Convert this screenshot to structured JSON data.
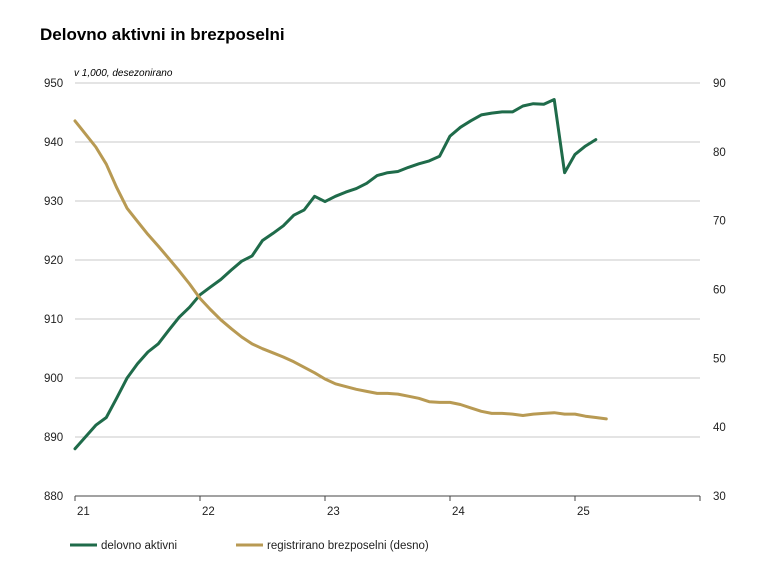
{
  "chart_data": {
    "type": "line",
    "title": "Delovno aktivni in brezposelni",
    "subtitle": "v 1,000, desezonirano",
    "x_tick_labels": [
      "21",
      "22",
      "23",
      "24",
      "25"
    ],
    "xlim": [
      21,
      26
    ],
    "ylim_left": [
      880,
      950
    ],
    "yticks_left": [
      880,
      890,
      900,
      910,
      920,
      930,
      940,
      950
    ],
    "ylim_right": [
      30,
      90
    ],
    "yticks_right": [
      30,
      40,
      50,
      60,
      70,
      80,
      90
    ],
    "grid": true,
    "legend_position": "bottom",
    "series": [
      {
        "name": "delovno aktivni",
        "axis": "left",
        "color": "#1f6b4a",
        "x": [
          21.0,
          21.0833,
          21.1667,
          21.25,
          21.3333,
          21.4167,
          21.5,
          21.5833,
          21.6667,
          21.75,
          21.8333,
          21.9167,
          22.0,
          22.0833,
          22.1667,
          22.25,
          22.3333,
          22.4167,
          22.5,
          22.5833,
          22.6667,
          22.75,
          22.8333,
          22.9167,
          23.0,
          23.0833,
          23.1667,
          23.25,
          23.3333,
          23.4167,
          23.5,
          23.5833,
          23.6667,
          23.75,
          23.8333,
          23.9167,
          24.0,
          24.0833,
          24.1667,
          24.25,
          24.3333,
          24.4167,
          24.5,
          24.5833,
          24.6667,
          24.75,
          24.8333,
          24.9167,
          25.0,
          25.0833,
          25.1667
        ],
        "values": [
          888.0,
          890.0,
          892.0,
          893.3,
          896.6,
          900.0,
          902.4,
          904.4,
          905.8,
          908.1,
          910.3,
          912.0,
          914.1,
          915.4,
          916.7,
          918.3,
          919.8,
          920.7,
          923.3,
          924.5,
          925.8,
          927.6,
          928.5,
          930.8,
          929.9,
          930.8,
          931.5,
          932.1,
          933.0,
          934.3,
          934.8,
          935.0,
          935.7,
          936.3,
          936.8,
          937.6,
          941.0,
          942.5,
          943.6,
          944.6,
          944.9,
          945.1,
          945.1,
          946.1,
          946.5,
          946.4,
          947.2,
          934.8,
          937.9,
          939.3,
          940.4
        ]
      },
      {
        "name": "registrirano brezposelni (desno)",
        "axis": "right",
        "color": "#b89a53",
        "x": [
          21.0,
          21.0833,
          21.1667,
          21.25,
          21.3333,
          21.4167,
          21.5,
          21.5833,
          21.6667,
          21.75,
          21.8333,
          21.9167,
          22.0,
          22.0833,
          22.1667,
          22.25,
          22.3333,
          22.4167,
          22.5,
          22.5833,
          22.6667,
          22.75,
          22.8333,
          22.9167,
          23.0,
          23.0833,
          23.1667,
          23.25,
          23.3333,
          23.4167,
          23.5,
          23.5833,
          23.6667,
          23.75,
          23.8333,
          23.9167,
          24.0,
          24.0833,
          24.1667,
          24.25,
          24.3333,
          24.4167,
          24.5,
          24.5833,
          24.6667,
          24.75,
          24.8333,
          24.9167,
          25.0,
          25.0833,
          25.1667,
          25.25
        ],
        "values": [
          84.5,
          82.6,
          80.7,
          78.2,
          74.8,
          71.8,
          69.9,
          68.0,
          66.3,
          64.5,
          62.7,
          60.8,
          58.7,
          57.1,
          55.6,
          54.3,
          53.1,
          52.1,
          51.4,
          50.8,
          50.2,
          49.5,
          48.7,
          47.9,
          47.0,
          46.3,
          45.9,
          45.5,
          45.2,
          44.9,
          44.9,
          44.8,
          44.5,
          44.2,
          43.7,
          43.6,
          43.6,
          43.3,
          42.8,
          42.3,
          42.0,
          42.0,
          41.9,
          41.7,
          41.9,
          42.0,
          42.1,
          41.9,
          41.9,
          41.6,
          41.4,
          41.2
        ]
      }
    ]
  }
}
